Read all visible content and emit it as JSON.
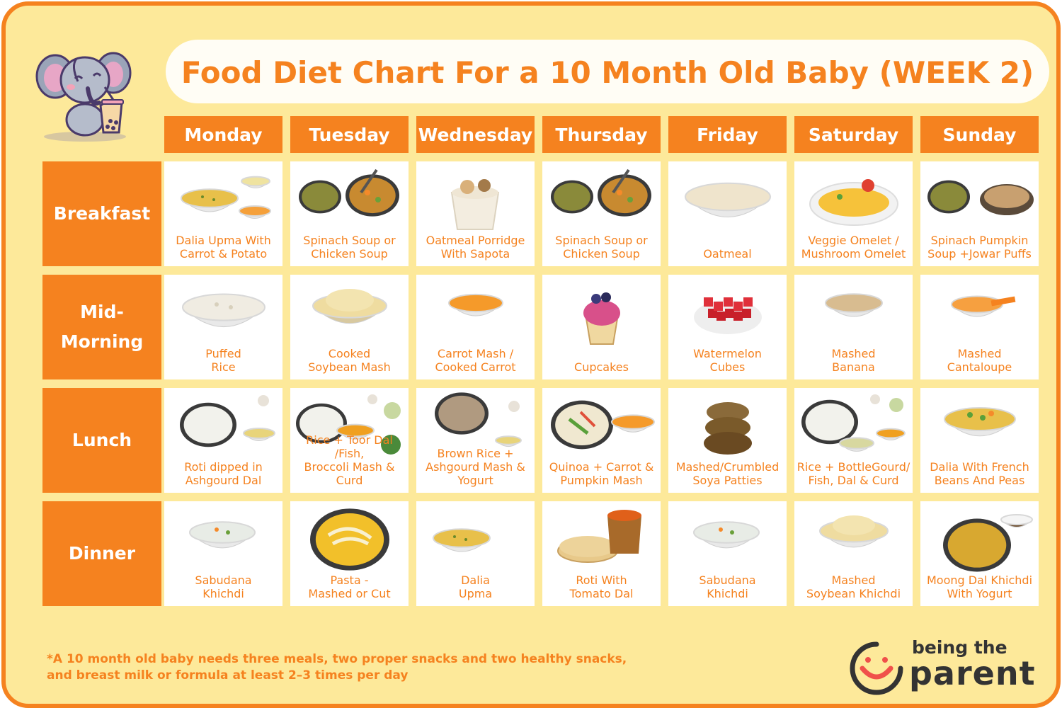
{
  "title": "Food Diet Chart For a 10 Month Old Baby (WEEK 2)",
  "colors": {
    "accent": "#f5821f",
    "background": "#fde99a",
    "cell": "#ffffff"
  },
  "days": [
    "Monday",
    "Tuesday",
    "Wednesday",
    "Thursday",
    "Friday",
    "Saturday",
    "Sunday"
  ],
  "meals": [
    {
      "name": "Breakfast",
      "items": [
        {
          "label": "Dalia Upma With\nCarrot & Potato",
          "icon": "dalia-upma-icon"
        },
        {
          "label": "Spinach Soup or\nChicken Soup",
          "icon": "soup-bowls-icon"
        },
        {
          "label": "Oatmeal Porridge\nWith Sapota",
          "icon": "porridge-cup-icon"
        },
        {
          "label": "Spinach Soup or\nChicken Soup",
          "icon": "soup-bowls-icon"
        },
        {
          "label": "Oatmeal",
          "icon": "oatmeal-bowl-icon"
        },
        {
          "label": "Veggie Omelet /\nMushroom Omelet",
          "icon": "omelet-icon"
        },
        {
          "label": "Spinach Pumpkin\nSoup +Jowar Puffs",
          "icon": "soup-puffs-icon"
        }
      ]
    },
    {
      "name": "Mid-\nMorning",
      "items": [
        {
          "label": "Puffed\nRice",
          "icon": "puffed-rice-icon"
        },
        {
          "label": "Cooked\nSoybean Mash",
          "icon": "soybean-mash-icon"
        },
        {
          "label": "Carrot Mash /\nCooked Carrot",
          "icon": "carrot-mash-icon"
        },
        {
          "label": "Cupcakes",
          "icon": "cupcake-icon"
        },
        {
          "label": "Watermelon\nCubes",
          "icon": "watermelon-icon"
        },
        {
          "label": "Mashed\nBanana",
          "icon": "banana-mash-icon"
        },
        {
          "label": "Mashed\nCantaloupe",
          "icon": "cantaloupe-mash-icon"
        }
      ]
    },
    {
      "name": "Lunch",
      "items": [
        {
          "label": "Roti dipped in\nAshgourd Dal",
          "icon": "rice-dal-icon"
        },
        {
          "label": "Rice + Toor Dal /Fish,\nBroccoli Mash & Curd",
          "icon": "rice-dal-broccoli-icon"
        },
        {
          "label": "Brown Rice +\nAshgourd Mash &\nYogurt",
          "icon": "brown-rice-icon"
        },
        {
          "label": "Quinoa + Carrot &\nPumpkin Mash",
          "icon": "quinoa-icon"
        },
        {
          "label": "Mashed/Crumbled\nSoya Patties",
          "icon": "soya-patties-icon"
        },
        {
          "label": "Rice + BottleGourd/\nFish, Dal & Curd",
          "icon": "rice-bottlegourd-icon"
        },
        {
          "label": "Dalia With French\nBeans And Peas",
          "icon": "dalia-beans-icon"
        }
      ]
    },
    {
      "name": "Dinner",
      "items": [
        {
          "label": "Sabudana\nKhichdi",
          "icon": "sabudana-icon"
        },
        {
          "label": "Pasta -\nMashed or Cut",
          "icon": "pasta-icon"
        },
        {
          "label": "Dalia\nUpma",
          "icon": "dalia-upma-icon"
        },
        {
          "label": "Roti With\nTomato Dal",
          "icon": "roti-dal-icon"
        },
        {
          "label": "Sabudana\nKhichdi",
          "icon": "sabudana-icon"
        },
        {
          "label": "Mashed\nSoybean Khichdi",
          "icon": "soybean-khichdi-icon"
        },
        {
          "label": "Moong Dal Khichdi\nWith Yogurt",
          "icon": "moong-dal-icon"
        }
      ]
    }
  ],
  "footnote": "*A 10 month old baby needs three meals, two proper snacks and two healthy snacks,\nand breast milk or formula at least 2–3 times per day",
  "logo": {
    "line1": "being the",
    "line2": "parent"
  }
}
